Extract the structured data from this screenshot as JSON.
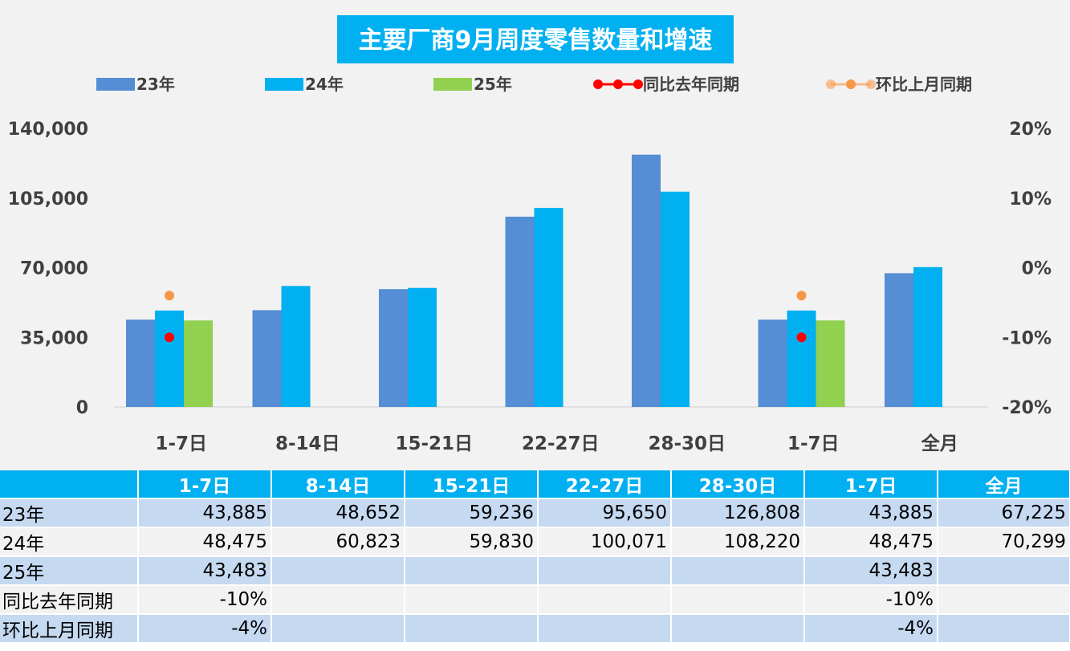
{
  "chart_data": {
    "type": "bar",
    "title": "主要厂商9月周度零售数量和增速",
    "categories": [
      "1-7日",
      "8-14日",
      "15-21日",
      "22-27日",
      "28-30日",
      "1-7日",
      "全月"
    ],
    "series": [
      {
        "name": "23年",
        "kind": "bar",
        "color": "#558ed5",
        "values": [
          43885,
          48652,
          59236,
          95650,
          126808,
          43885,
          67225
        ]
      },
      {
        "name": "24年",
        "kind": "bar",
        "color": "#00b0f0",
        "values": [
          48475,
          60823,
          59830,
          100071,
          108220,
          48475,
          70299
        ]
      },
      {
        "name": "25年",
        "kind": "bar",
        "color": "#92d050",
        "values": [
          43483,
          null,
          null,
          null,
          null,
          43483,
          null
        ]
      },
      {
        "name": "同比去年同期",
        "kind": "line",
        "axis": "right",
        "color": "#ff0000",
        "values": [
          -0.1,
          null,
          null,
          null,
          null,
          -0.1,
          null
        ]
      },
      {
        "name": "环比上月同期",
        "kind": "line",
        "axis": "right",
        "color": "#f79646",
        "values": [
          -0.04,
          null,
          null,
          null,
          null,
          -0.04,
          null
        ]
      }
    ],
    "y_left": {
      "range": [
        0,
        140000
      ],
      "ticks": [
        "0",
        "35,000",
        "70,000",
        "105,000",
        "140,000"
      ]
    },
    "y_right": {
      "range": [
        -0.2,
        0.2
      ],
      "ticks": [
        "-20%",
        "-10%",
        "0%",
        "10%",
        "20%"
      ]
    },
    "legend_position": "top",
    "grid": false
  },
  "table": {
    "header": [
      "",
      "1-7日",
      "8-14日",
      "15-21日",
      "22-27日",
      "28-30日",
      "1-7日",
      "全月"
    ],
    "rows": [
      {
        "label": "23年",
        "cells": [
          "43,885",
          "48,652",
          "59,236",
          "95,650",
          "126,808",
          "43,885",
          "67,225"
        ]
      },
      {
        "label": "24年",
        "cells": [
          "48,475",
          "60,823",
          "59,830",
          "100,071",
          "108,220",
          "48,475",
          "70,299"
        ]
      },
      {
        "label": "25年",
        "cells": [
          "43,483",
          "",
          "",
          "",
          "",
          "43,483",
          ""
        ]
      },
      {
        "label": "同比去年同期",
        "cells": [
          "-10%",
          "",
          "",
          "",
          "",
          "-10%",
          ""
        ]
      },
      {
        "label": "环比上月同期",
        "cells": [
          "-4%",
          "",
          "",
          "",
          "",
          "-4%",
          ""
        ]
      }
    ]
  }
}
